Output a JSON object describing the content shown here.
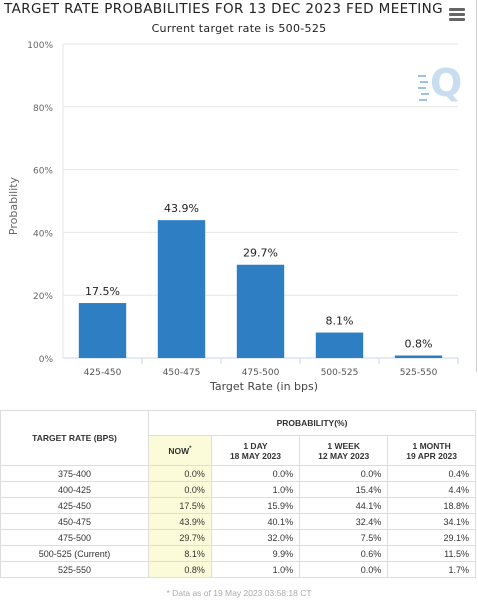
{
  "header": {
    "title": "TARGET RATE PROBABILITIES FOR 13 DEC 2023 FED MEETING",
    "subtitle": "Current target rate is 500-525"
  },
  "chart_data": {
    "type": "bar",
    "xlabel": "Target Rate (in bps)",
    "ylabel": "Probability",
    "categories": [
      "425-450",
      "450-475",
      "475-500",
      "500-525",
      "525-550"
    ],
    "values": [
      17.5,
      43.9,
      29.7,
      8.1,
      0.8
    ],
    "data_labels": [
      "17.5%",
      "43.9%",
      "29.7%",
      "8.1%",
      "0.8%"
    ],
    "ylim": [
      0,
      100
    ],
    "yticks": [
      0,
      20,
      40,
      60,
      80,
      100
    ],
    "ytick_labels": [
      "0%",
      "20%",
      "40%",
      "60%",
      "80%",
      "100%"
    ],
    "grid": true,
    "bar_color": "#2e7ec4"
  },
  "table": {
    "row_header": "TARGET RATE (BPS)",
    "group_header": "PROBABILITY(%)",
    "columns": [
      {
        "line1": "NOW",
        "line2": "",
        "mark": "*"
      },
      {
        "line1": "1 DAY",
        "line2": "18 MAY 2023",
        "mark": ""
      },
      {
        "line1": "1 WEEK",
        "line2": "12 MAY 2023",
        "mark": ""
      },
      {
        "line1": "1 MONTH",
        "line2": "19 APR 2023",
        "mark": ""
      }
    ],
    "rows": [
      {
        "label": "375-400",
        "values": [
          "0.0%",
          "0.0%",
          "0.0%",
          "0.4%"
        ]
      },
      {
        "label": "400-425",
        "values": [
          "0.0%",
          "1.0%",
          "15.4%",
          "4.4%"
        ]
      },
      {
        "label": "425-450",
        "values": [
          "17.5%",
          "15.9%",
          "44.1%",
          "18.8%"
        ]
      },
      {
        "label": "450-475",
        "values": [
          "43.9%",
          "40.1%",
          "32.4%",
          "34.1%"
        ]
      },
      {
        "label": "475-500",
        "values": [
          "29.7%",
          "32.0%",
          "7.5%",
          "29.1%"
        ]
      },
      {
        "label": "500-525 (Current)",
        "values": [
          "8.1%",
          "9.9%",
          "0.6%",
          "11.5%"
        ]
      },
      {
        "label": "525-550",
        "values": [
          "0.8%",
          "1.0%",
          "0.0%",
          "1.7%"
        ]
      }
    ]
  },
  "footnote": "* Data as of 19 May 2023 03:58:18 CT",
  "colors": {
    "now_column_bg": "#fbfbd9",
    "bar": "#2e7ec4",
    "watermark": "#5b9bd5"
  },
  "icons": {
    "menu": "hamburger-menu-icon",
    "watermark": "cme-q-logo"
  }
}
